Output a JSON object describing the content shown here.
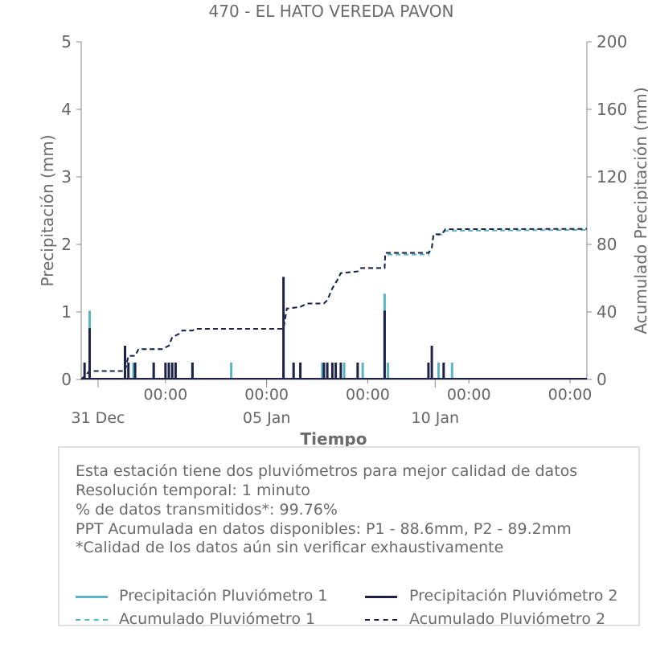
{
  "chart_data": {
    "type": "line",
    "title": "470 - EL HATO VEREDA PAVON",
    "xlabel": "Tiempo",
    "ylabel_left": "Precipitación (mm)",
    "ylabel_right": "Acumulado Precipitación (mm)",
    "ylim_left": [
      0,
      5
    ],
    "ylim_right": [
      0,
      200
    ],
    "yticks_left": [
      "0",
      "1",
      "2",
      "3",
      "4",
      "5"
    ],
    "yticks_right": [
      "0",
      "40",
      "80",
      "120",
      "160",
      "200"
    ],
    "xlim_days": [
      0,
      15
    ],
    "xticks_major": [
      {
        "day": 0.5,
        "label": "31 Dec"
      },
      {
        "day": 5.5,
        "label": "05 Jan"
      },
      {
        "day": 10.5,
        "label": "10 Jan"
      }
    ],
    "xticks_minor": [
      {
        "day": 2.5,
        "label": "00:00"
      },
      {
        "day": 5.5,
        "label": "00:00"
      },
      {
        "day": 8.5,
        "label": "00:00"
      },
      {
        "day": 11.5,
        "label": "00:00"
      },
      {
        "day": 14.5,
        "label": "00:00"
      }
    ],
    "series": [
      {
        "name": "Precipitación Pluviómetro 1",
        "kind": "bars",
        "color": "#5ab4c4",
        "points": [
          [
            0.25,
            1.02
          ],
          [
            1.3,
            0.25
          ],
          [
            1.55,
            0.25
          ],
          [
            2.15,
            0.25
          ],
          [
            2.6,
            0.25
          ],
          [
            3.3,
            0.25
          ],
          [
            4.45,
            0.25
          ],
          [
            6.0,
            0.25
          ],
          [
            6.3,
            0.25
          ],
          [
            7.15,
            0.25
          ],
          [
            7.8,
            0.25
          ],
          [
            8.35,
            0.25
          ],
          [
            9.0,
            1.27
          ],
          [
            9.1,
            0.25
          ],
          [
            10.6,
            0.25
          ],
          [
            11.0,
            0.25
          ]
        ]
      },
      {
        "name": "Precipitación Pluviómetro 2",
        "kind": "bars",
        "color": "#1f2248",
        "points": [
          [
            0.1,
            0.25
          ],
          [
            0.25,
            0.76
          ],
          [
            1.3,
            0.5
          ],
          [
            1.4,
            0.25
          ],
          [
            1.6,
            0.25
          ],
          [
            2.15,
            0.25
          ],
          [
            2.5,
            0.25
          ],
          [
            2.6,
            0.25
          ],
          [
            2.7,
            0.25
          ],
          [
            2.8,
            0.25
          ],
          [
            3.3,
            0.25
          ],
          [
            6.0,
            1.52
          ],
          [
            6.3,
            0.25
          ],
          [
            6.5,
            0.25
          ],
          [
            7.2,
            0.25
          ],
          [
            7.3,
            0.25
          ],
          [
            7.45,
            0.25
          ],
          [
            7.55,
            0.25
          ],
          [
            7.7,
            0.25
          ],
          [
            8.2,
            0.25
          ],
          [
            9.0,
            1.02
          ],
          [
            10.3,
            0.25
          ],
          [
            10.4,
            0.5
          ],
          [
            10.75,
            0.25
          ]
        ]
      },
      {
        "name": "Acumulado Pluviómetro 1",
        "kind": "line",
        "axis": "right",
        "color": "#5ab4c4",
        "dash": "6,4",
        "points": [
          [
            0,
            0
          ],
          [
            0.25,
            5
          ],
          [
            1.3,
            5
          ],
          [
            1.4,
            14
          ],
          [
            1.6,
            14
          ],
          [
            1.7,
            18
          ],
          [
            2.4,
            18
          ],
          [
            2.6,
            20
          ],
          [
            2.7,
            25
          ],
          [
            2.9,
            27
          ],
          [
            3.0,
            29
          ],
          [
            3.3,
            29
          ],
          [
            3.4,
            30
          ],
          [
            6.0,
            30
          ],
          [
            6.1,
            42
          ],
          [
            6.5,
            43
          ],
          [
            6.7,
            45
          ],
          [
            7.2,
            45
          ],
          [
            7.3,
            47
          ],
          [
            7.45,
            54
          ],
          [
            7.6,
            59
          ],
          [
            7.7,
            63
          ],
          [
            8.2,
            64
          ],
          [
            8.3,
            66
          ],
          [
            9.0,
            66
          ],
          [
            9.02,
            74
          ],
          [
            10.3,
            74
          ],
          [
            10.4,
            78
          ],
          [
            10.45,
            85
          ],
          [
            10.7,
            86
          ],
          [
            10.8,
            88
          ],
          [
            15,
            88.6
          ]
        ]
      },
      {
        "name": "Acumulado Pluviómetro 2",
        "kind": "line",
        "axis": "right",
        "color": "#1f2248",
        "dash": "6,4",
        "points": [
          [
            0,
            0
          ],
          [
            0.25,
            5
          ],
          [
            1.3,
            5
          ],
          [
            1.4,
            14
          ],
          [
            1.6,
            14
          ],
          [
            1.7,
            18
          ],
          [
            2.4,
            18
          ],
          [
            2.6,
            20
          ],
          [
            2.7,
            25
          ],
          [
            2.9,
            27
          ],
          [
            3.0,
            29
          ],
          [
            3.3,
            29
          ],
          [
            3.4,
            30
          ],
          [
            6.0,
            30
          ],
          [
            6.1,
            42
          ],
          [
            6.5,
            43
          ],
          [
            6.7,
            45
          ],
          [
            7.2,
            45
          ],
          [
            7.3,
            47
          ],
          [
            7.45,
            54
          ],
          [
            7.6,
            59
          ],
          [
            7.7,
            63
          ],
          [
            8.2,
            64
          ],
          [
            8.3,
            66
          ],
          [
            9.0,
            66
          ],
          [
            9.02,
            75
          ],
          [
            10.3,
            75
          ],
          [
            10.4,
            78
          ],
          [
            10.45,
            86
          ],
          [
            10.7,
            86
          ],
          [
            10.8,
            89
          ],
          [
            15,
            89.2
          ]
        ]
      }
    ],
    "grid": false,
    "legend_placement": "bottom"
  },
  "info": {
    "lines": [
      "Esta estación tiene dos pluviómetros para mejor calidad de datos",
      "Resolución temporal: 1 minuto",
      "% de datos transmitidos*: 99.76%",
      "PPT Acumulada en datos disponibles: P1 - 88.6mm, P2 - 89.2mm",
      "*Calidad de los datos aún sin verificar exhaustivamente"
    ]
  },
  "legend": [
    {
      "label": "Precipitación Pluviómetro 1",
      "color": "#5ab4c4",
      "style": "solid"
    },
    {
      "label": "Precipitación Pluviómetro 2",
      "color": "#1f2248",
      "style": "solid"
    },
    {
      "label": "Acumulado Pluviómetro 1",
      "color": "#5ab4c4",
      "style": "dashed"
    },
    {
      "label": "Acumulado Pluviómetro 2",
      "color": "#1f2248",
      "style": "dashed"
    }
  ]
}
